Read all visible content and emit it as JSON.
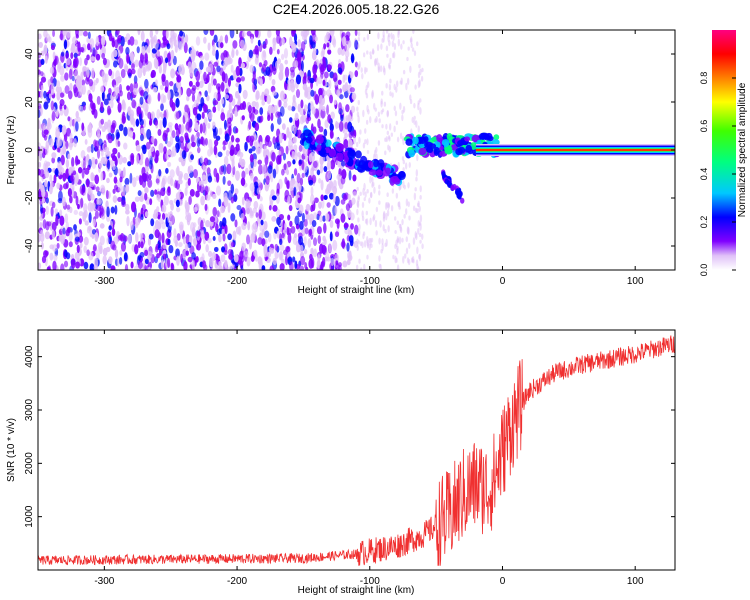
{
  "title": "C2E4.2026.005.18.22.G26",
  "chart_data": [
    {
      "type": "heatmap",
      "name": "spectrogram",
      "xlabel": "Height of straight line (km)",
      "ylabel": "Frequency (Hz)",
      "xlim": [
        -350,
        130
      ],
      "ylim": [
        -50,
        50
      ],
      "x_ticks": [
        -300,
        -200,
        -100,
        0,
        100
      ],
      "y_ticks": [
        -40,
        -20,
        0,
        20,
        40
      ],
      "colorbar": {
        "label": "Normalized spectral amplitude",
        "range": [
          0,
          1
        ],
        "ticks": [
          0.0,
          0.2,
          0.4,
          0.6,
          0.8
        ],
        "colormap": [
          "#ffffff",
          "#e0c0f8",
          "#8000ff",
          "#0000ff",
          "#00c8ff",
          "#00ff80",
          "#ffff00",
          "#ff8000",
          "#ff0000",
          "#ff0080"
        ]
      },
      "features": {
        "noise_region_x": [
          -350,
          -110
        ],
        "sparse_region_x": [
          -110,
          -60
        ],
        "descending_arc": {
          "x": [
            -150,
            -75
          ],
          "y": [
            5,
            -12
          ]
        },
        "secondary_arc": {
          "x": [
            -45,
            -30
          ],
          "y": [
            -10,
            -20
          ]
        },
        "carrier_line": {
          "x_start": -20,
          "x_end": 130,
          "y": 0,
          "peak_color": "#ff0000"
        }
      }
    },
    {
      "type": "line",
      "name": "snr",
      "xlabel": "Height of straight line (km)",
      "ylabel": "SNR (10 * v/v)",
      "xlim": [
        -350,
        130
      ],
      "ylim": [
        0,
        4500
      ],
      "x_ticks": [
        -300,
        -200,
        -100,
        0,
        100
      ],
      "y_ticks": [
        1000,
        2000,
        3000,
        4000
      ],
      "color": "#f03030",
      "profile": {
        "x": [
          -350,
          -150,
          -110,
          -80,
          -60,
          -40,
          -30,
          -20,
          -10,
          -5,
          0,
          5,
          10,
          20,
          40,
          60,
          80,
          100,
          130
        ],
        "y": [
          180,
          220,
          300,
          450,
          650,
          1000,
          1400,
          1600,
          1500,
          1800,
          2200,
          2600,
          2900,
          3350,
          3700,
          3850,
          3950,
          4050,
          4250
        ]
      }
    }
  ]
}
